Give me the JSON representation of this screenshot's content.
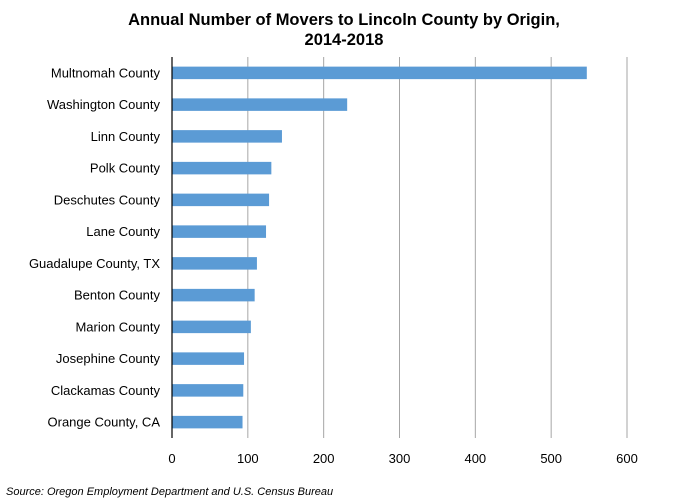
{
  "chart_data": {
    "type": "bar",
    "orientation": "horizontal",
    "title_lines": [
      "Annual Number of Movers to Lincoln County by Origin,",
      "2014-2018"
    ],
    "categories": [
      "Multnomah County",
      "Washington County",
      "Linn County",
      "Polk County",
      "Deschutes County",
      "Lane County",
      "Guadalupe County, TX",
      "Benton County",
      "Marion County",
      "Josephine County",
      "Clackamas County",
      "Orange County, CA"
    ],
    "values": [
      547,
      231,
      145,
      131,
      128,
      124,
      112,
      109,
      104,
      95,
      94,
      93
    ],
    "xlim": [
      0,
      600
    ],
    "xticks": [
      0,
      100,
      200,
      300,
      400,
      500,
      600
    ],
    "grid": true,
    "bar_color": "#5b9bd5",
    "legend": "none",
    "source": "Source: Oregon Employment Department and U.S. Census Bureau"
  }
}
